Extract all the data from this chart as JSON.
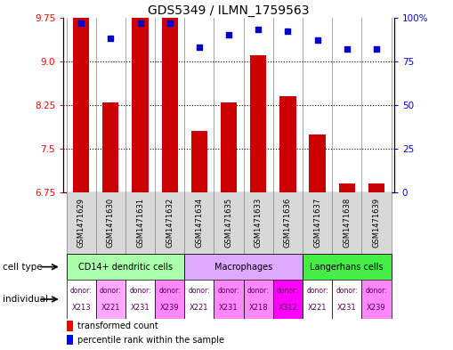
{
  "title": "GDS5349 / ILMN_1759563",
  "samples": [
    "GSM1471629",
    "GSM1471630",
    "GSM1471631",
    "GSM1471632",
    "GSM1471634",
    "GSM1471635",
    "GSM1471633",
    "GSM1471636",
    "GSM1471637",
    "GSM1471638",
    "GSM1471639"
  ],
  "transformed_count": [
    9.75,
    8.3,
    9.75,
    9.75,
    7.8,
    8.3,
    9.1,
    8.4,
    7.75,
    6.9,
    6.9
  ],
  "percentile_rank": [
    97,
    88,
    97,
    97,
    83,
    90,
    93,
    92,
    87,
    82,
    82
  ],
  "ylim_left": [
    6.75,
    9.75
  ],
  "ylim_right": [
    0,
    100
  ],
  "yticks_left": [
    6.75,
    7.5,
    8.25,
    9.0,
    9.75
  ],
  "yticks_right": [
    0,
    25,
    50,
    75,
    100
  ],
  "cell_type_groups": [
    {
      "label": "CD14+ dendritic cells",
      "start": 0,
      "end": 3,
      "color": "#aaffaa"
    },
    {
      "label": "Macrophages",
      "start": 4,
      "end": 7,
      "color": "#ddaaff"
    },
    {
      "label": "Langerhans cells",
      "start": 8,
      "end": 10,
      "color": "#44ee44"
    }
  ],
  "donors": [
    "X213",
    "X221",
    "X231",
    "X239",
    "X221",
    "X231",
    "X218",
    "X312",
    "X221",
    "X231",
    "X239"
  ],
  "donor_colors": [
    "#ffffff",
    "#ffaaff",
    "#ffffff",
    "#ff88ff",
    "#ffffff",
    "#ff88ff",
    "#ff88ff",
    "#ff00ff",
    "#ffffff",
    "#ffffff",
    "#ff88ff"
  ],
  "bar_color": "#cc0000",
  "dot_color": "#0000cc",
  "bg_color": "#ffffff",
  "label_area_bg": "#cccccc",
  "cell_type_colors": [
    "#aaffaa",
    "#ddaaff",
    "#44ee44"
  ]
}
